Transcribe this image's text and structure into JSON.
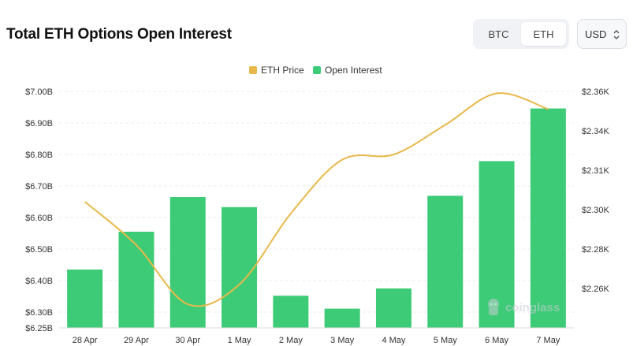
{
  "header": {
    "title": "Total ETH Options Open Interest",
    "toggle": [
      "BTC",
      "ETH"
    ],
    "toggle_selected": "ETH",
    "currency": "USD"
  },
  "colors": {
    "bar": "#3ecb78",
    "line": "#e8b84a",
    "grid": "#ececec",
    "axis_text": "#333333"
  },
  "watermark": "coinglass",
  "chart_data": {
    "type": "bar",
    "categories": [
      "28 Apr",
      "29 Apr",
      "30 Apr",
      "1 May",
      "2 May",
      "3 May",
      "4 May",
      "5 May",
      "6 May",
      "7 May"
    ],
    "series": [
      {
        "name": "Open Interest",
        "type": "bar",
        "axis": "left",
        "values": [
          6.435,
          6.555,
          6.665,
          6.633,
          6.352,
          6.311,
          6.375,
          6.669,
          6.779,
          6.946
        ]
      },
      {
        "name": "ETH Price",
        "type": "line",
        "axis": "right",
        "values": [
          2302,
          2282,
          2252,
          2262,
          2298,
          2318,
          2322,
          2343,
          2359,
          2351
        ]
      }
    ],
    "left_axis": {
      "ticks": [
        6.25,
        6.3,
        6.4,
        6.5,
        6.6,
        6.7,
        6.8,
        6.9,
        7.0
      ],
      "tick_labels": [
        "$6.25B",
        "$6.30B",
        "$6.40B",
        "$6.50B",
        "$6.60B",
        "$6.70B",
        "$6.80B",
        "$6.90B",
        "$7.00B"
      ],
      "ylim": [
        6.25,
        7.0
      ]
    },
    "right_axis": {
      "ticks": [
        2260,
        2280,
        2300,
        2310,
        2340,
        2360
      ],
      "tick_labels": [
        "$2.26K",
        "$2.28K",
        "$2.30K",
        "$2.31K",
        "$2.34K",
        "$2.36K"
      ]
    },
    "legend": [
      "ETH Price",
      "Open Interest"
    ],
    "legend_position": "top-center",
    "grid": true
  }
}
